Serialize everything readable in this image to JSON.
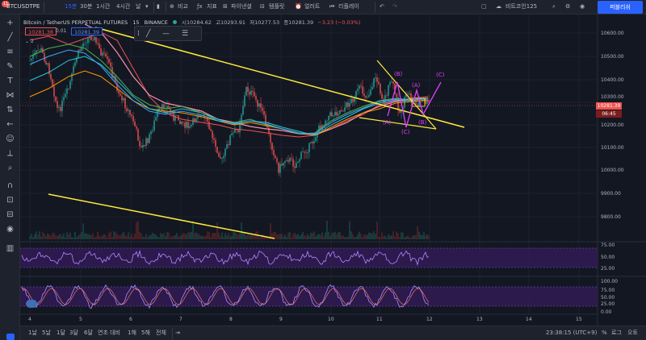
{
  "toolbar": {
    "symbol": "BTCUSDTPE",
    "notif_count": "11",
    "intervals": [
      "15분",
      "30분",
      "1시간",
      "4시간",
      "날"
    ],
    "active_interval": "15분",
    "compare_label": "비교",
    "indicators_label": "지표",
    "financials_label": "파이낸셜",
    "templates_label": "템플릿",
    "alert_label": "얼러트",
    "replay_label": "리플레이",
    "layout_name": "비트코인125",
    "publish_label": "퍼블리쉬"
  },
  "legend": {
    "title": "Bitcoin / TetherUS PERPETUAL FUTURES",
    "interval": "15",
    "exchange": "BINANCE",
    "open": "시10284.62",
    "high": "고10293.91",
    "low": "저10277.53",
    "close": "종10281.39",
    "change": "−3.23 (−0.03%)",
    "bid": "10281.38",
    "spread": "0.01",
    "ask": "10281.39",
    "series_count": "2"
  },
  "price_axis": {
    "labels": [
      "10600.00",
      "10500.00",
      "10400.00",
      "10300.00",
      "10200.00",
      "10100.00",
      "10000.00",
      "9900.00",
      "9800.00"
    ],
    "last_price": "10281.39",
    "countdown": "06:45"
  },
  "time_axis": {
    "labels": [
      "4",
      "5",
      "6",
      "7",
      "8",
      "9",
      "10",
      "11",
      "12",
      "13",
      "14",
      "15"
    ]
  },
  "rsi_axis": {
    "labels": [
      "75.00",
      "50.00",
      "25.00"
    ]
  },
  "stoch_axis": {
    "labels": [
      "100.00",
      "75.00",
      "50.00",
      "25.00",
      "0.00"
    ]
  },
  "wave_labels": [
    "(B)",
    "(A)",
    "(C)",
    "(A)",
    "(C)",
    "(B)"
  ],
  "bottom": {
    "ranges": [
      "1날",
      "5날",
      "1달",
      "3달",
      "6달",
      "연초 대비",
      "1해",
      "5해",
      "전체"
    ],
    "clock": "23:38:15 (UTC+9)",
    "percent_label": "%",
    "log_label": "로그",
    "auto_label": "오토"
  },
  "colors": {
    "background": "#131722",
    "panel": "#1e222d",
    "accent": "#2962ff",
    "up": "#26a69a",
    "down": "#ef5350",
    "trendline": "#ffeb3b",
    "waves": "#e040fb",
    "oscillator_band": "#4a148c"
  },
  "icons": [
    "crosshair-icon",
    "trendline-icon",
    "fib-icon",
    "brush-icon",
    "text-icon",
    "pattern-icon",
    "prediction-icon",
    "back-icon",
    "emoji-icon",
    "ruler-icon",
    "zoom-icon",
    "magnet-icon",
    "lock-icon",
    "eye-icon",
    "trash-icon"
  ]
}
